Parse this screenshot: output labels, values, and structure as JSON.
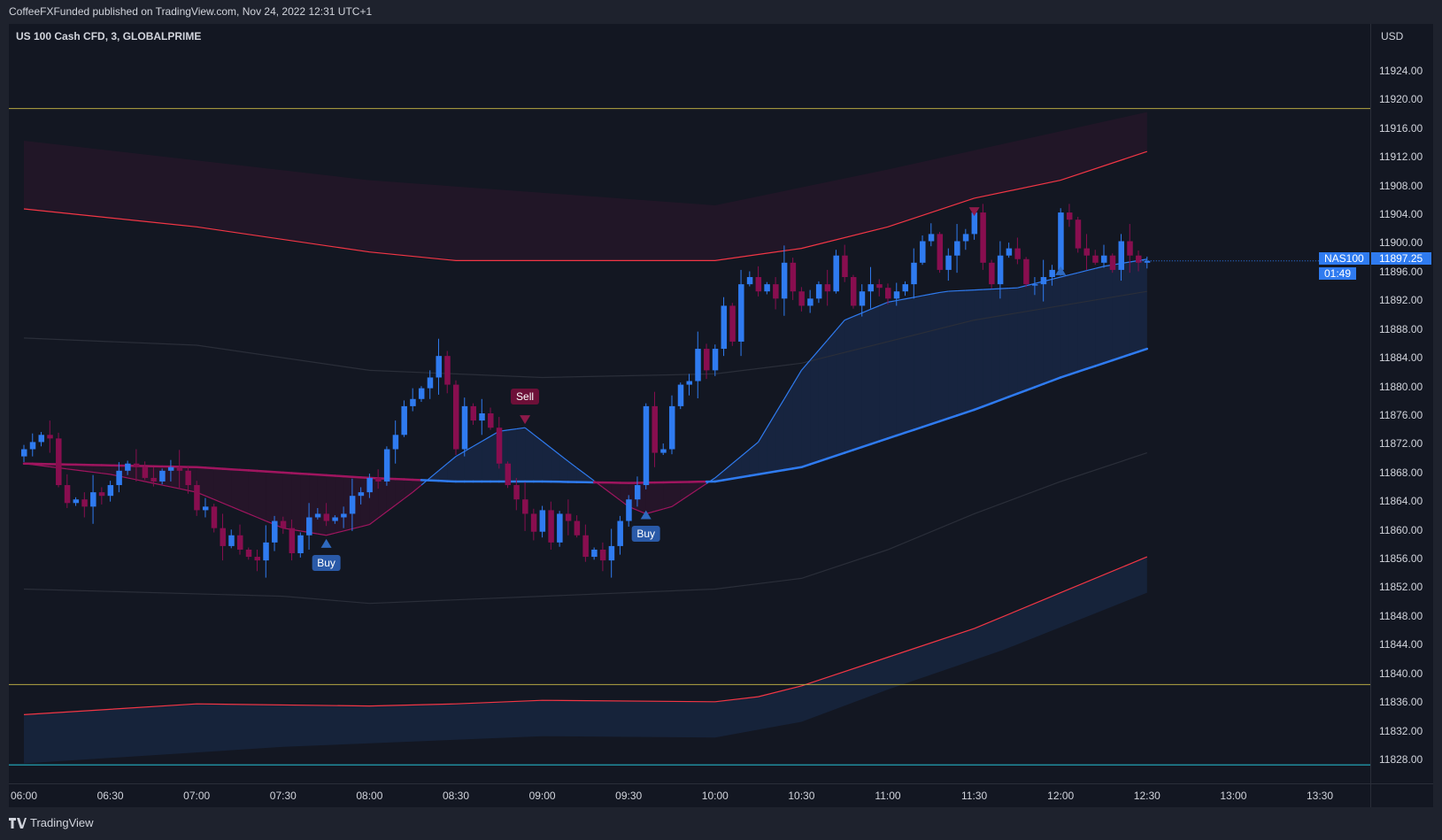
{
  "header": {
    "published": "CoffeeFXFunded published on TradingView.com, Nov 24, 2022 12:31 UTC+1"
  },
  "symbol_title": "US 100 Cash CFD, 3, GLOBALPRIME",
  "currency": "USD",
  "current": {
    "symbol_tag": "NAS100",
    "price": "11897.25",
    "countdown": "01:49"
  },
  "footer": {
    "brand": "TradingView"
  },
  "colors": {
    "up": "#2f7bf0",
    "down": "#880e4f",
    "bg": "#131722",
    "band": "#f23645",
    "level": "#b5a642",
    "teal": "#26c6da"
  },
  "chart_data": {
    "type": "candlestick",
    "title": "US 100 Cash CFD, 3, GLOBALPRIME",
    "interval_minutes": 3,
    "start_time": "06:00",
    "ylim": [
      11824,
      11928
    ],
    "y_ticks": [
      "11924.00",
      "11920.00",
      "11916.00",
      "11912.00",
      "11908.00",
      "11904.00",
      "11900.00",
      "11896.00",
      "11892.00",
      "11888.00",
      "11884.00",
      "11880.00",
      "11876.00",
      "11872.00",
      "11868.00",
      "11864.00",
      "11860.00",
      "11856.00",
      "11852.00",
      "11848.00",
      "11844.00",
      "11840.00",
      "11836.00",
      "11832.00",
      "11828.00"
    ],
    "x_ticks": [
      "06:00",
      "06:30",
      "07:00",
      "07:30",
      "08:00",
      "08:30",
      "09:00",
      "09:30",
      "10:00",
      "10:30",
      "11:00",
      "11:30",
      "12:00",
      "12:30",
      "13:00",
      "13:30"
    ],
    "first_open": 11870,
    "closes": [
      11871,
      11872,
      11873,
      11872.5,
      11866,
      11863.5,
      11864,
      11863,
      11865,
      11864.5,
      11866,
      11868,
      11869,
      11868.5,
      11867,
      11866.5,
      11868,
      11868.5,
      11868,
      11866,
      11862.5,
      11863,
      11860,
      11857.5,
      11859,
      11857,
      11856,
      11855.5,
      11858,
      11861,
      11860,
      11856.5,
      11859,
      11861.5,
      11862,
      11861,
      11861.5,
      11862,
      11864.5,
      11865,
      11867,
      11866.5,
      11871,
      11873,
      11877,
      11878,
      11879.5,
      11881,
      11884,
      11880,
      11871,
      11877,
      11875,
      11876,
      11874,
      11869,
      11866,
      11864,
      11862,
      11859.5,
      11862.5,
      11858,
      11862,
      11861,
      11859,
      11856,
      11857,
      11855.5,
      11857.5,
      11861,
      11864,
      11866,
      11877,
      11870.5,
      11871,
      11877,
      11880,
      11880.5,
      11885,
      11882,
      11885,
      11891,
      11886,
      11894,
      11895,
      11893,
      11894,
      11892,
      11897,
      11893,
      11891,
      11892,
      11894,
      11893,
      11898,
      11895,
      11891,
      11893,
      11894,
      11893.5,
      11892,
      11893,
      11894,
      11897,
      11900,
      11901,
      11896,
      11898,
      11900,
      11901,
      11904,
      11897,
      11894,
      11898,
      11899,
      11897.5,
      11894,
      11894,
      11895,
      11896,
      11904,
      11903,
      11899,
      11898,
      11897,
      11898,
      11896,
      11900,
      11898,
      11897,
      11897.25
    ],
    "levels": [
      {
        "price": 11918.5,
        "color": "#b5a642"
      },
      {
        "price": 11838.2,
        "color": "#b5a642"
      },
      {
        "price": 11827,
        "color": "#26c6da"
      }
    ],
    "indicators": {
      "upper_band": [
        [
          0,
          11904.5
        ],
        [
          60,
          11902
        ],
        [
          120,
          11898.5
        ],
        [
          150,
          11897.3
        ],
        [
          240,
          11897.3
        ],
        [
          270,
          11899
        ],
        [
          300,
          11902
        ],
        [
          330,
          11906
        ],
        [
          360,
          11908.5
        ],
        [
          390,
          11912.5
        ]
      ],
      "upper_cloud": [
        [
          0,
          11914
        ],
        [
          120,
          11908.5
        ],
        [
          240,
          11905
        ],
        [
          300,
          11910
        ],
        [
          390,
          11918
        ]
      ],
      "lower_band": [
        [
          0,
          11834
        ],
        [
          60,
          11835.5
        ],
        [
          120,
          11835.2
        ],
        [
          150,
          11835.5
        ],
        [
          180,
          11836
        ],
        [
          240,
          11835.8
        ],
        [
          255,
          11836.5
        ],
        [
          270,
          11838
        ],
        [
          300,
          11842
        ],
        [
          330,
          11846
        ],
        [
          360,
          11851
        ],
        [
          390,
          11856
        ]
      ],
      "lower_cloud": [
        [
          0,
          11827.2
        ],
        [
          90,
          11829.5
        ],
        [
          180,
          11831
        ],
        [
          240,
          11830.8
        ],
        [
          270,
          11833
        ],
        [
          300,
          11837.5
        ],
        [
          340,
          11843
        ],
        [
          390,
          11851
        ]
      ],
      "upper_mid": [
        [
          0,
          11886.5
        ],
        [
          60,
          11885.5
        ],
        [
          120,
          11882
        ],
        [
          180,
          11881
        ],
        [
          240,
          11881.5
        ],
        [
          270,
          11883
        ],
        [
          330,
          11889
        ],
        [
          390,
          11893
        ]
      ],
      "lower_mid": [
        [
          0,
          11851.5
        ],
        [
          90,
          11850.5
        ],
        [
          120,
          11849.5
        ],
        [
          240,
          11851.5
        ],
        [
          270,
          11853
        ],
        [
          300,
          11857
        ],
        [
          330,
          11862
        ],
        [
          360,
          11866.5
        ],
        [
          390,
          11870.5
        ]
      ],
      "slow_ma": [
        [
          0,
          11869
        ],
        [
          60,
          11868.5
        ],
        [
          120,
          11867
        ],
        [
          150,
          11866.5
        ],
        [
          180,
          11866.5
        ],
        [
          210,
          11866.3
        ],
        [
          240,
          11866.5
        ],
        [
          270,
          11868.5
        ],
        [
          300,
          11872.5
        ],
        [
          330,
          11876.5
        ],
        [
          360,
          11881
        ],
        [
          390,
          11885
        ]
      ],
      "fast_ma": [
        [
          0,
          11869
        ],
        [
          30,
          11867.5
        ],
        [
          60,
          11865
        ],
        [
          90,
          11860
        ],
        [
          105,
          11859
        ],
        [
          120,
          11860.5
        ],
        [
          135,
          11865
        ],
        [
          150,
          11870
        ],
        [
          165,
          11873.5
        ],
        [
          174,
          11874
        ],
        [
          190,
          11869
        ],
        [
          210,
          11863
        ],
        [
          216,
          11862
        ],
        [
          225,
          11863
        ],
        [
          240,
          11867
        ],
        [
          255,
          11872
        ],
        [
          270,
          11882
        ],
        [
          285,
          11889
        ],
        [
          300,
          11891.5
        ],
        [
          320,
          11893
        ],
        [
          345,
          11893.5
        ],
        [
          360,
          11895
        ],
        [
          375,
          11896.5
        ],
        [
          390,
          11897.5
        ]
      ]
    },
    "signals": [
      {
        "label": "Buy",
        "minute": 105,
        "price": 11858,
        "side": "buy"
      },
      {
        "label": "Sell",
        "minute": 174,
        "price": 11875,
        "side": "sell"
      },
      {
        "label": "Buy",
        "minute": 216,
        "price": 11862,
        "side": "buy"
      },
      {
        "label": "",
        "minute": 330,
        "price": 11904,
        "side": "sell"
      },
      {
        "label": "",
        "minute": 360,
        "price": 11896,
        "side": "buy"
      }
    ]
  }
}
